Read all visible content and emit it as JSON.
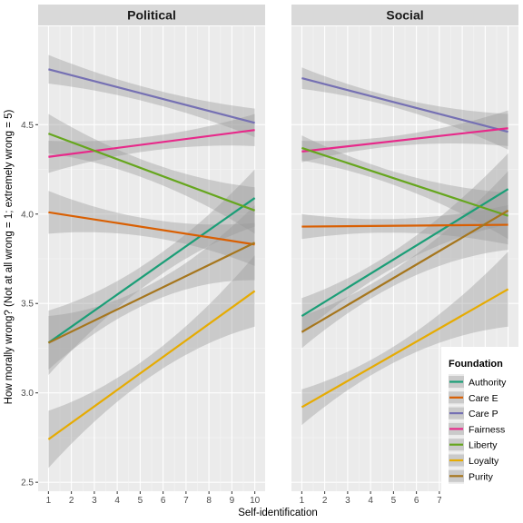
{
  "chart_data": {
    "type": "line",
    "ylabel": "How morally wrong? (Not at all wrong = 1; extremely wrong = 5)",
    "xlabel": "Self-identification",
    "x_ticks": [
      1,
      2,
      3,
      4,
      5,
      6,
      7,
      8,
      9,
      10
    ],
    "y_ticks": [
      "2.5",
      "3.0",
      "3.5",
      "4.0",
      "4.5"
    ],
    "xlim": [
      0.55,
      10.45
    ],
    "ylim": [
      2.45,
      5.05
    ],
    "grid": true,
    "legend": {
      "title": "Foundation",
      "position": "bottom-right inside"
    },
    "panels": [
      {
        "title": "Political",
        "series": [
          {
            "name": "Authority",
            "color": "#1b9e77",
            "start": 3.28,
            "end": 4.09,
            "band_start": 0.18,
            "band_min": 0.06,
            "band_end": 0.16
          },
          {
            "name": "Care E",
            "color": "#d95f02",
            "start": 4.01,
            "end": 3.83,
            "band_start": 0.12,
            "band_min": 0.05,
            "band_end": 0.12
          },
          {
            "name": "Care P",
            "color": "#7570b3",
            "start": 4.81,
            "end": 4.51,
            "band_start": 0.08,
            "band_min": 0.04,
            "band_end": 0.08
          },
          {
            "name": "Fairness",
            "color": "#e7298a",
            "start": 4.32,
            "end": 4.47,
            "band_start": 0.09,
            "band_min": 0.04,
            "band_end": 0.09
          },
          {
            "name": "Liberty",
            "color": "#66a61e",
            "start": 4.45,
            "end": 4.02,
            "band_start": 0.11,
            "band_min": 0.05,
            "band_end": 0.13
          },
          {
            "name": "Loyalty",
            "color": "#e6ab02",
            "start": 2.74,
            "end": 3.57,
            "band_start": 0.16,
            "band_min": 0.06,
            "band_end": 0.2
          },
          {
            "name": "Purity",
            "color": "#a6761d",
            "start": 3.28,
            "end": 3.84,
            "band_start": 0.15,
            "band_min": 0.05,
            "band_end": 0.21
          }
        ]
      },
      {
        "title": "Social",
        "series": [
          {
            "name": "Authority",
            "color": "#1b9e77",
            "start": 3.43,
            "end": 4.14,
            "band_start": 0.1,
            "band_min": 0.05,
            "band_end": 0.2
          },
          {
            "name": "Care E",
            "color": "#d95f02",
            "start": 3.93,
            "end": 3.94,
            "band_start": 0.07,
            "band_min": 0.04,
            "band_end": 0.11
          },
          {
            "name": "Care P",
            "color": "#7570b3",
            "start": 4.76,
            "end": 4.46,
            "band_start": 0.06,
            "band_min": 0.03,
            "band_end": 0.1
          },
          {
            "name": "Fairness",
            "color": "#e7298a",
            "start": 4.35,
            "end": 4.48,
            "band_start": 0.06,
            "band_min": 0.03,
            "band_end": 0.1
          },
          {
            "name": "Liberty",
            "color": "#66a61e",
            "start": 4.37,
            "end": 3.99,
            "band_start": 0.07,
            "band_min": 0.04,
            "band_end": 0.13
          },
          {
            "name": "Loyalty",
            "color": "#e6ab02",
            "start": 2.92,
            "end": 3.58,
            "band_start": 0.1,
            "band_min": 0.05,
            "band_end": 0.21
          },
          {
            "name": "Purity",
            "color": "#a6761d",
            "start": 3.34,
            "end": 4.02,
            "band_start": 0.09,
            "band_min": 0.05,
            "band_end": 0.22
          }
        ]
      }
    ]
  }
}
